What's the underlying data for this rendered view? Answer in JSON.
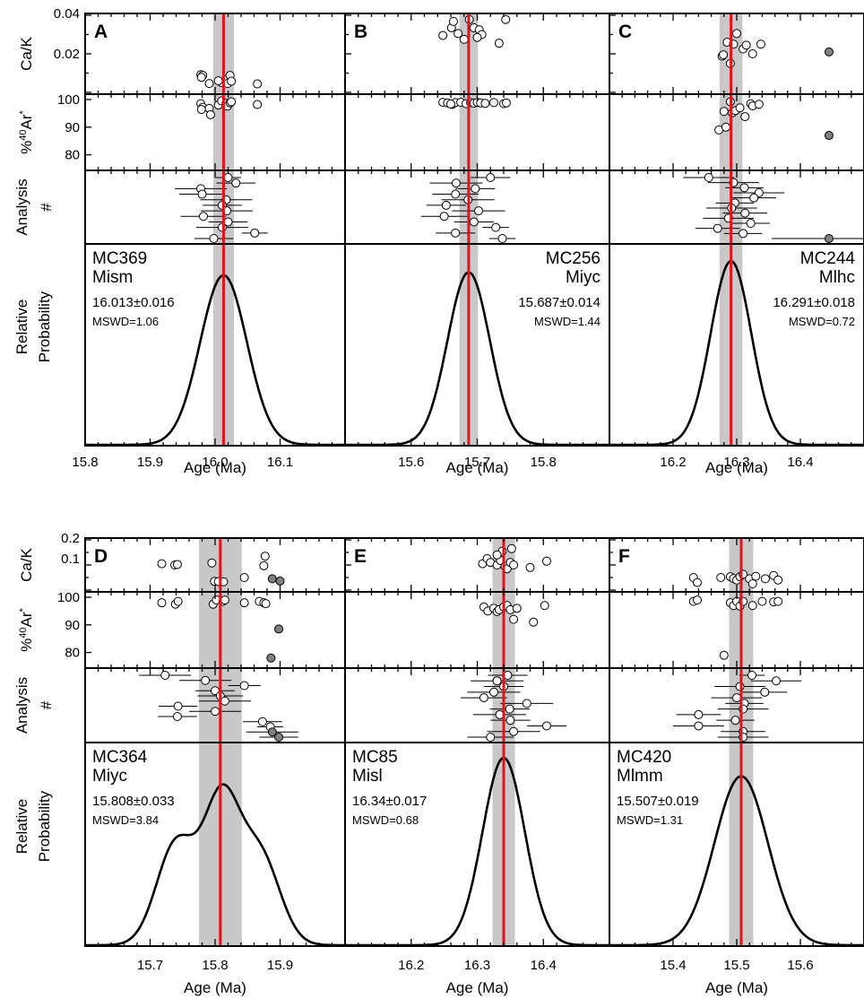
{
  "figure": {
    "row_labels": {
      "cak": "Ca/K",
      "ar_prefix": "%",
      "ar_sup": "40",
      "ar_main": "Ar",
      "ar_star": "*",
      "analysis_line1": "Analysis",
      "analysis_line2": "#",
      "prob_line1": "Relative",
      "prob_line2": "Probability"
    },
    "x_axis_label": "Age (Ma)"
  },
  "chart_data": [
    {
      "type": "scatter",
      "panel": "A",
      "sample": "MC369",
      "unit": "Mism",
      "age": "16.013±0.016",
      "mswd": "MSWD=1.06",
      "weighted_mean": 16.013,
      "band": [
        15.997,
        16.029
      ],
      "xlim": [
        15.8,
        16.2
      ],
      "xticks": [
        15.8,
        15.9,
        16.0,
        16.1
      ],
      "xticklabels": [
        "15.8",
        "15.9",
        "16.0",
        "16.1"
      ],
      "cak_ylim": [
        0,
        0.04
      ],
      "cak_yticks": [
        "0.04",
        "0.02"
      ],
      "ar_ylim": [
        75,
        100
      ],
      "ar_yticks": [
        "100",
        "90",
        "80"
      ],
      "curve": {
        "type": "gaussian",
        "center": 16.013,
        "sigma": 0.036,
        "peak": 0.84
      },
      "cak": [
        [
          15.978,
          0.0092
        ],
        [
          15.981,
          0.0088
        ],
        [
          15.979,
          0.0078
        ],
        [
          15.991,
          0.0046
        ],
        [
          16.01,
          0.0051
        ],
        [
          16.017,
          0.0066
        ],
        [
          16.023,
          0.0088
        ],
        [
          16.019,
          0.0046
        ],
        [
          16.025,
          0.0058
        ],
        [
          16.065,
          0.0044
        ],
        [
          16.005,
          0.006
        ]
      ],
      "cak_grey": [],
      "ar": [
        [
          15.978,
          98.5
        ],
        [
          15.981,
          97.2
        ],
        [
          15.979,
          96.4
        ],
        [
          15.991,
          96.8
        ],
        [
          16.005,
          98.0
        ],
        [
          16.01,
          99.5
        ],
        [
          16.017,
          98.6
        ],
        [
          16.019,
          97.6
        ],
        [
          16.023,
          98.8
        ],
        [
          16.025,
          99.2
        ],
        [
          16.065,
          98.2
        ],
        [
          15.993,
          94.5
        ]
      ],
      "ar_grey": [],
      "analysis": [
        {
          "age": 16.02,
          "err": 0.02
        },
        {
          "age": 16.032,
          "err": 0.03
        },
        {
          "age": 15.978,
          "err": 0.04
        },
        {
          "age": 15.98,
          "err": 0.035
        },
        {
          "age": 16.017,
          "err": 0.04
        },
        {
          "age": 16.011,
          "err": 0.03
        },
        {
          "age": 16.018,
          "err": 0.04
        },
        {
          "age": 15.982,
          "err": 0.035
        },
        {
          "age": 16.02,
          "err": 0.03
        },
        {
          "age": 16.011,
          "err": 0.04
        },
        {
          "age": 16.061,
          "err": 0.02
        },
        {
          "age": 15.998,
          "err": 0.03
        }
      ],
      "analysis_grey": []
    },
    {
      "type": "scatter",
      "panel": "B",
      "sample": "MC256",
      "unit": "Miyc",
      "age": "15.687±0.014",
      "mswd": "MSWD=1.44",
      "weighted_mean": 15.687,
      "band": [
        15.673,
        15.701
      ],
      "xlim": [
        15.5,
        15.9
      ],
      "xticks": [
        15.6,
        15.7,
        15.8
      ],
      "xticklabels": [
        "15.6",
        "15.7",
        "15.8"
      ],
      "cak_ylim": [
        0,
        0.04
      ],
      "cak_yticks": [],
      "ar_ylim": [
        75,
        100
      ],
      "ar_yticks": [],
      "curve": {
        "type": "gaussian",
        "center": 15.687,
        "sigma": 0.032,
        "peak": 0.855
      },
      "cak": [
        [
          15.648,
          0.0295
        ],
        [
          15.661,
          0.0335
        ],
        [
          15.664,
          0.0368
        ],
        [
          15.68,
          0.0275
        ],
        [
          15.688,
          0.0378
        ],
        [
          15.695,
          0.0335
        ],
        [
          15.703,
          0.0325
        ],
        [
          15.707,
          0.03
        ],
        [
          15.733,
          0.0255
        ],
        [
          15.743,
          0.0378
        ],
        [
          15.671,
          0.0305
        ],
        [
          15.7,
          0.0285
        ]
      ],
      "cak_grey": [],
      "ar": [
        [
          15.648,
          99.0
        ],
        [
          15.655,
          98.8
        ],
        [
          15.662,
          98.2
        ],
        [
          15.667,
          98.9
        ],
        [
          15.675,
          99.0
        ],
        [
          15.683,
          98.5
        ],
        [
          15.69,
          98.9
        ],
        [
          15.695,
          98.7
        ],
        [
          15.7,
          99.0
        ],
        [
          15.705,
          98.8
        ],
        [
          15.712,
          98.6
        ],
        [
          15.725,
          98.9
        ],
        [
          15.74,
          98.5
        ],
        [
          15.744,
          98.8
        ],
        [
          15.66,
          98.4
        ]
      ],
      "ar_grey": [],
      "analysis": [
        {
          "age": 15.72,
          "err": 0.03
        },
        {
          "age": 15.668,
          "err": 0.04
        },
        {
          "age": 15.697,
          "err": 0.03
        },
        {
          "age": 15.667,
          "err": 0.035
        },
        {
          "age": 15.686,
          "err": 0.04
        },
        {
          "age": 15.653,
          "err": 0.03
        },
        {
          "age": 15.702,
          "err": 0.04
        },
        {
          "age": 15.65,
          "err": 0.035
        },
        {
          "age": 15.695,
          "err": 0.03
        },
        {
          "age": 15.728,
          "err": 0.02
        },
        {
          "age": 15.667,
          "err": 0.03
        },
        {
          "age": 15.738,
          "err": 0.02
        }
      ],
      "analysis_grey": []
    },
    {
      "type": "scatter",
      "panel": "C",
      "sample": "MC244",
      "unit": "Mlhc",
      "age": "16.291±0.018",
      "mswd": "MSWD=0.72",
      "weighted_mean": 16.291,
      "band": [
        16.273,
        16.309
      ],
      "xlim": [
        16.1,
        16.5
      ],
      "xticks": [
        16.2,
        16.3,
        16.4
      ],
      "xticklabels": [
        "16.2",
        "16.3",
        "16.4"
      ],
      "cak_ylim": [
        0,
        0.04
      ],
      "cak_yticks": [],
      "ar_ylim": [
        75,
        100
      ],
      "ar_yticks": [],
      "curve": {
        "type": "gaussian",
        "center": 16.291,
        "sigma": 0.032,
        "peak": 0.91
      },
      "cak": [
        [
          16.277,
          0.0188
        ],
        [
          16.279,
          0.0195
        ],
        [
          16.285,
          0.026
        ],
        [
          16.29,
          0.015
        ],
        [
          16.295,
          0.025
        ],
        [
          16.3,
          0.0305
        ],
        [
          16.31,
          0.0225
        ],
        [
          16.315,
          0.0245
        ],
        [
          16.325,
          0.02
        ],
        [
          16.338,
          0.025
        ]
      ],
      "cak_grey": [
        [
          16.445,
          0.021
        ]
      ],
      "ar": [
        [
          16.272,
          89.0
        ],
        [
          16.28,
          95.7
        ],
        [
          16.283,
          90.0
        ],
        [
          16.29,
          99.2
        ],
        [
          16.293,
          95.2
        ],
        [
          16.298,
          96.0
        ],
        [
          16.305,
          97.0
        ],
        [
          16.313,
          93.8
        ],
        [
          16.322,
          98.5
        ],
        [
          16.325,
          97.7
        ],
        [
          16.335,
          98.3
        ]
      ],
      "ar_grey": [
        [
          16.445,
          87.0
        ]
      ],
      "analysis": [
        {
          "age": 16.256,
          "err": 0.04
        },
        {
          "age": 16.295,
          "err": 0.04
        },
        {
          "age": 16.312,
          "err": 0.03
        },
        {
          "age": 16.335,
          "err": 0.04
        },
        {
          "age": 16.327,
          "err": 0.035
        },
        {
          "age": 16.297,
          "err": 0.03
        },
        {
          "age": 16.292,
          "err": 0.04
        },
        {
          "age": 16.313,
          "err": 0.035
        },
        {
          "age": 16.287,
          "err": 0.04
        },
        {
          "age": 16.322,
          "err": 0.03
        },
        {
          "age": 16.27,
          "err": 0.035
        },
        {
          "age": 16.31,
          "err": 0.03
        }
      ],
      "analysis_grey": [
        {
          "age": 16.445,
          "err": 0.09
        }
      ]
    },
    {
      "type": "scatter",
      "panel": "D",
      "sample": "MC364",
      "unit": "Miyc",
      "age": "15.808±0.033",
      "mswd": "MSWD=3.84",
      "weighted_mean": 15.808,
      "band": [
        15.775,
        15.841
      ],
      "xlim": [
        15.6,
        16.0
      ],
      "xticks": [
        15.7,
        15.8,
        15.9
      ],
      "xticklabels": [
        "15.7",
        "15.8",
        "15.9"
      ],
      "cak_ylim": [
        0,
        0.2
      ],
      "cak_yticks": [
        "0.2",
        "0.1",
        "0.0"
      ],
      "ar_ylim": [
        75,
        100
      ],
      "ar_yticks": [
        "100",
        "90",
        "80"
      ],
      "curve": {
        "type": "mixture",
        "components": [
          [
            15.74,
            0.03,
            0.5
          ],
          [
            15.81,
            0.028,
            0.7
          ],
          [
            15.87,
            0.03,
            0.43
          ]
        ],
        "peak": 0.79
      },
      "cak": [
        [
          15.718,
          0.105
        ],
        [
          15.738,
          0.1
        ],
        [
          15.742,
          0.102
        ],
        [
          15.795,
          0.108
        ],
        [
          15.799,
          0.035
        ],
        [
          15.805,
          0.034
        ],
        [
          15.813,
          0.033
        ],
        [
          15.845,
          0.05
        ],
        [
          15.875,
          0.097
        ],
        [
          15.877,
          0.135
        ]
      ],
      "cak_grey": [
        [
          15.888,
          0.045
        ],
        [
          15.9,
          0.036
        ]
      ],
      "ar": [
        [
          15.718,
          98.0
        ],
        [
          15.739,
          97.5
        ],
        [
          15.743,
          98.5
        ],
        [
          15.797,
          97.5
        ],
        [
          15.802,
          99.0
        ],
        [
          15.812,
          98.5
        ],
        [
          15.815,
          99.0
        ],
        [
          15.845,
          98.0
        ],
        [
          15.868,
          98.5
        ],
        [
          15.875,
          98.0
        ],
        [
          15.878,
          97.7
        ]
      ],
      "ar_grey": [
        [
          15.898,
          88.5
        ],
        [
          15.886,
          78.0
        ]
      ],
      "analysis": [
        {
          "age": 15.723,
          "err": 0.04
        },
        {
          "age": 15.785,
          "err": 0.04
        },
        {
          "age": 15.845,
          "err": 0.025
        },
        {
          "age": 15.8,
          "err": 0.03
        },
        {
          "age": 15.808,
          "err": 0.035
        },
        {
          "age": 15.815,
          "err": 0.04
        },
        {
          "age": 15.743,
          "err": 0.03
        },
        {
          "age": 15.8,
          "err": 0.04
        },
        {
          "age": 15.742,
          "err": 0.03
        },
        {
          "age": 15.873,
          "err": 0.03
        },
        {
          "age": 15.885,
          "err": 0.02
        }
      ],
      "analysis_grey": [
        {
          "age": 15.888,
          "err": 0.04
        },
        {
          "age": 15.898,
          "err": 0.03
        }
      ]
    },
    {
      "type": "scatter",
      "panel": "E",
      "sample": "MC85",
      "unit": "Misl",
      "age": "16.34±0.017",
      "mswd": "MSWD=0.68",
      "weighted_mean": 16.34,
      "band": [
        16.323,
        16.357
      ],
      "xlim": [
        16.1,
        16.5
      ],
      "xticks": [
        16.2,
        16.3,
        16.4
      ],
      "xticklabels": [
        "16.2",
        "16.3",
        "16.4"
      ],
      "cak_ylim": [
        0,
        0.2
      ],
      "cak_yticks": [],
      "ar_ylim": [
        75,
        100
      ],
      "ar_yticks": [],
      "curve": {
        "type": "gaussian",
        "center": 16.34,
        "sigma": 0.032,
        "peak": 0.92
      },
      "cak": [
        [
          16.308,
          0.105
        ],
        [
          16.315,
          0.125
        ],
        [
          16.32,
          0.11
        ],
        [
          16.33,
          0.1
        ],
        [
          16.335,
          0.118
        ],
        [
          16.338,
          0.155
        ],
        [
          16.342,
          0.095
        ],
        [
          16.345,
          0.085
        ],
        [
          16.35,
          0.11
        ],
        [
          16.352,
          0.165
        ],
        [
          16.355,
          0.1
        ],
        [
          16.38,
          0.09
        ],
        [
          16.405,
          0.115
        ],
        [
          16.33,
          0.14
        ]
      ],
      "cak_grey": [],
      "ar": [
        [
          16.31,
          96.5
        ],
        [
          16.316,
          95.0
        ],
        [
          16.325,
          96.0
        ],
        [
          16.33,
          94.8
        ],
        [
          16.333,
          95.5
        ],
        [
          16.34,
          96.5
        ],
        [
          16.345,
          97.0
        ],
        [
          16.35,
          95.5
        ],
        [
          16.355,
          92.0
        ],
        [
          16.36,
          96.0
        ],
        [
          16.385,
          91.0
        ],
        [
          16.402,
          97.0
        ]
      ],
      "ar_grey": [],
      "analysis": [
        {
          "age": 16.346,
          "err": 0.03
        },
        {
          "age": 16.33,
          "err": 0.04
        },
        {
          "age": 16.34,
          "err": 0.03
        },
        {
          "age": 16.325,
          "err": 0.04
        },
        {
          "age": 16.31,
          "err": 0.035
        },
        {
          "age": 16.375,
          "err": 0.04
        },
        {
          "age": 16.349,
          "err": 0.03
        },
        {
          "age": 16.334,
          "err": 0.04
        },
        {
          "age": 16.35,
          "err": 0.03
        },
        {
          "age": 16.405,
          "err": 0.03
        },
        {
          "age": 16.355,
          "err": 0.04
        },
        {
          "age": 16.32,
          "err": 0.035
        }
      ],
      "analysis_grey": []
    },
    {
      "type": "scatter",
      "panel": "F",
      "sample": "MC420",
      "unit": "Mlmm",
      "age": "15.507±0.019",
      "mswd": "MSWD=1.31",
      "weighted_mean": 15.507,
      "band": [
        15.488,
        15.526
      ],
      "xlim": [
        15.3,
        15.7
      ],
      "xticks": [
        15.4,
        15.5,
        15.6
      ],
      "xticklabels": [
        "15.4",
        "15.5",
        "15.6"
      ],
      "cak_ylim": [
        0,
        0.2
      ],
      "cak_yticks": [],
      "ar_ylim": [
        75,
        100
      ],
      "ar_yticks": [],
      "curve": {
        "type": "gaussian",
        "center": 15.507,
        "sigma": 0.042,
        "peak": 0.83
      },
      "cak": [
        [
          15.432,
          0.05
        ],
        [
          15.438,
          0.03
        ],
        [
          15.475,
          0.05
        ],
        [
          15.49,
          0.053
        ],
        [
          15.495,
          0.046
        ],
        [
          15.5,
          0.04
        ],
        [
          15.505,
          0.053
        ],
        [
          15.51,
          0.063
        ],
        [
          15.52,
          0.045
        ],
        [
          15.525,
          0.025
        ],
        [
          15.53,
          0.055
        ],
        [
          15.545,
          0.045
        ],
        [
          15.558,
          0.058
        ],
        [
          15.565,
          0.04
        ]
      ],
      "cak_grey": [],
      "ar": [
        [
          15.432,
          98.5
        ],
        [
          15.438,
          99.0
        ],
        [
          15.49,
          98.0
        ],
        [
          15.495,
          97.0
        ],
        [
          15.5,
          98.5
        ],
        [
          15.505,
          96.8
        ],
        [
          15.51,
          98.5
        ],
        [
          15.525,
          97.0
        ],
        [
          15.54,
          98.5
        ],
        [
          15.558,
          98.3
        ],
        [
          15.565,
          98.5
        ],
        [
          15.48,
          79.0
        ]
      ],
      "ar_grey": [],
      "analysis": [
        {
          "age": 15.524,
          "err": 0.02
        },
        {
          "age": 15.562,
          "err": 0.04
        },
        {
          "age": 15.505,
          "err": 0.04
        },
        {
          "age": 15.544,
          "err": 0.035
        },
        {
          "age": 15.5,
          "err": 0.04
        },
        {
          "age": 15.512,
          "err": 0.03
        },
        {
          "age": 15.51,
          "err": 0.04
        },
        {
          "age": 15.44,
          "err": 0.035
        },
        {
          "age": 15.498,
          "err": 0.03
        },
        {
          "age": 15.44,
          "err": 0.04
        },
        {
          "age": 15.51,
          "err": 0.035
        },
        {
          "age": 15.51,
          "err": 0.04
        }
      ],
      "analysis_grey": []
    }
  ]
}
